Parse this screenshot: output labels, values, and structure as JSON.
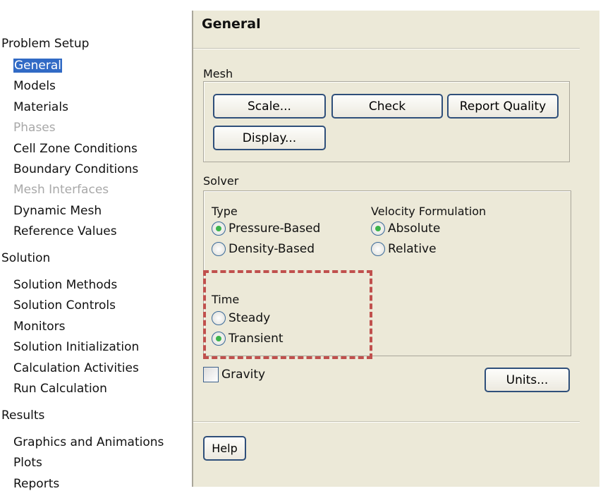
{
  "tree": {
    "sections": [
      {
        "label": "Problem Setup",
        "items": [
          {
            "label": "General",
            "selected": true
          },
          {
            "label": "Models"
          },
          {
            "label": "Materials"
          },
          {
            "label": "Phases",
            "disabled": true
          },
          {
            "label": "Cell Zone Conditions"
          },
          {
            "label": "Boundary Conditions"
          },
          {
            "label": "Mesh Interfaces",
            "disabled": true
          },
          {
            "label": "Dynamic Mesh"
          },
          {
            "label": "Reference Values"
          }
        ]
      },
      {
        "label": "Solution",
        "items": [
          {
            "label": "Solution Methods"
          },
          {
            "label": "Solution Controls"
          },
          {
            "label": "Monitors"
          },
          {
            "label": "Solution Initialization"
          },
          {
            "label": "Calculation Activities"
          },
          {
            "label": "Run Calculation"
          }
        ]
      },
      {
        "label": "Results",
        "items": [
          {
            "label": "Graphics and Animations"
          },
          {
            "label": "Plots"
          },
          {
            "label": "Reports"
          }
        ]
      }
    ]
  },
  "panel": {
    "title": "General",
    "mesh": {
      "label": "Mesh",
      "scale": "Scale...",
      "check": "Check",
      "report_quality": "Report Quality",
      "display": "Display..."
    },
    "solver": {
      "label": "Solver",
      "type": {
        "label": "Type",
        "options": [
          "Pressure-Based",
          "Density-Based"
        ],
        "selected": "Pressure-Based"
      },
      "velocity": {
        "label": "Velocity Formulation",
        "options": [
          "Absolute",
          "Relative"
        ],
        "selected": "Absolute"
      },
      "time": {
        "label": "Time",
        "options": [
          "Steady",
          "Transient"
        ],
        "selected": "Transient"
      }
    },
    "gravity": {
      "label": "Gravity",
      "checked": false
    },
    "units": "Units...",
    "help": "Help"
  },
  "colors": {
    "panel_bg": "#ece9d8",
    "selection": "#316ac5",
    "highlight_dash": "#c0504d",
    "radio_dot": "#3cb44b"
  }
}
